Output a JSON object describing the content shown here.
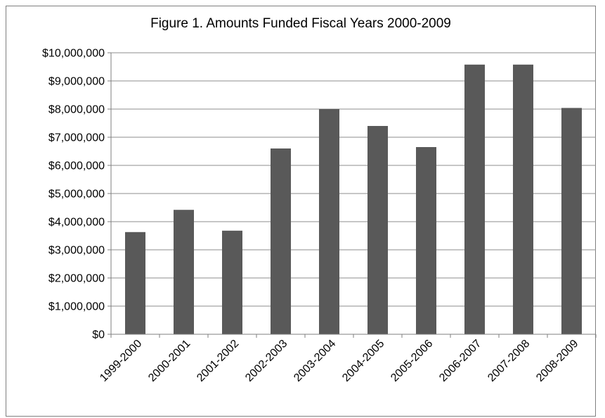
{
  "chart_data": {
    "type": "bar",
    "title": "Figure 1. Amounts Funded Fiscal Years 2000-2009",
    "xlabel": "",
    "ylabel": "",
    "categories": [
      "1999-2000",
      "2000-2001",
      "2001-2002",
      "2002-2003",
      "2003-2004",
      "2004-2005",
      "2005-2006",
      "2006-2007",
      "2007-2008",
      "2008-2009"
    ],
    "values": [
      3630000,
      4420000,
      3680000,
      6600000,
      8000000,
      7400000,
      6650000,
      9580000,
      9580000,
      8040000
    ],
    "ylim": [
      0,
      10000000
    ],
    "y_tick_labels": [
      "$0",
      "$1,000,000",
      "$2,000,000",
      "$3,000,000",
      "$4,000,000",
      "$5,000,000",
      "$6,000,000",
      "$7,000,000",
      "$8,000,000",
      "$9,000,000",
      "$10,000,000"
    ],
    "grid": true,
    "legend": "none",
    "bar_color": "#595959",
    "grid_color": "#8c8c8c"
  }
}
